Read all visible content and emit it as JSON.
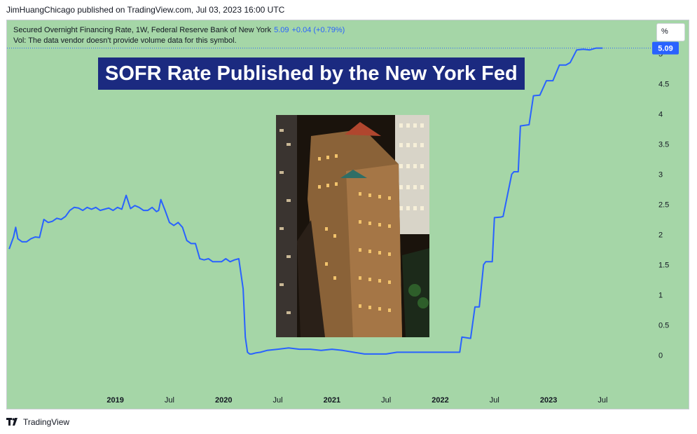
{
  "header": {
    "publish_text": "JimHuangChicago published on TradingView.com, Jul 03, 2023 16:00 UTC"
  },
  "legend": {
    "symbol": "Secured Overnight Financing Rate, 1W, Federal Reserve Bank of New York",
    "last_value": "5.09",
    "change": "+0.04 (+0.79%)",
    "volume_note": "Vol: The data vendor doesn't provide volume data for this symbol."
  },
  "scale_button": {
    "label": "%"
  },
  "banner": {
    "title": "SOFR Rate Published by the New York Fed"
  },
  "photo": {
    "subject": "federal-reserve-bank-of-new-york-building"
  },
  "footer": {
    "brand": "TradingView"
  },
  "colors": {
    "background": "#a5d6a7",
    "line": "#2962ff",
    "banner": "#1b2a80",
    "price_label": "#2962ff"
  },
  "chart_data": {
    "type": "line",
    "series": [
      {
        "x": [
          2018.02,
          2018.06,
          2018.08,
          2018.1,
          2018.14,
          2018.18,
          2018.22,
          2018.26,
          2018.3,
          2018.34,
          2018.38,
          2018.42,
          2018.46,
          2018.5,
          2018.54,
          2018.58,
          2018.62,
          2018.66,
          2018.7,
          2018.74,
          2018.78,
          2018.82,
          2018.86,
          2018.9,
          2018.94,
          2018.98,
          2019.02,
          2019.06,
          2019.1,
          2019.14,
          2019.18,
          2019.22,
          2019.26,
          2019.3,
          2019.34,
          2019.38,
          2019.4,
          2019.42,
          2019.46,
          2019.5,
          2019.54,
          2019.58,
          2019.62,
          2019.66,
          2019.7,
          2019.74,
          2019.78,
          2019.82,
          2019.86,
          2019.9,
          2019.94,
          2019.98,
          2020.02,
          2020.06,
          2020.1,
          2020.14,
          2020.18,
          2020.2,
          2020.22,
          2020.24,
          2020.26,
          2020.3,
          2020.34,
          2020.4,
          2020.5,
          2020.6,
          2020.7,
          2020.8,
          2020.9,
          2021.0,
          2021.1,
          2021.2,
          2021.3,
          2021.4,
          2021.45,
          2021.5,
          2021.6,
          2021.8,
          2022.0,
          2022.1,
          2022.18,
          2022.2,
          2022.28,
          2022.32,
          2022.36,
          2022.4,
          2022.42,
          2022.48,
          2022.5,
          2022.56,
          2022.58,
          2022.66,
          2022.68,
          2022.72,
          2022.74,
          2022.82,
          2022.86,
          2022.92,
          2022.98,
          2023.04,
          2023.1,
          2023.16,
          2023.2,
          2023.26,
          2023.32,
          2023.38,
          2023.44,
          2023.5
        ],
        "y": [
          1.76,
          1.96,
          2.12,
          1.93,
          1.88,
          1.88,
          1.93,
          1.96,
          1.95,
          2.25,
          2.2,
          2.22,
          2.27,
          2.25,
          2.3,
          2.4,
          2.45,
          2.44,
          2.4,
          2.45,
          2.42,
          2.45,
          2.4,
          2.42,
          2.44,
          2.4,
          2.45,
          2.42,
          2.65,
          2.43,
          2.48,
          2.45,
          2.4,
          2.4,
          2.45,
          2.38,
          2.4,
          2.58,
          2.4,
          2.2,
          2.15,
          2.2,
          2.12,
          1.9,
          1.85,
          1.85,
          1.6,
          1.58,
          1.6,
          1.55,
          1.55,
          1.55,
          1.6,
          1.55,
          1.58,
          1.6,
          1.1,
          0.3,
          0.05,
          0.02,
          0.02,
          0.04,
          0.05,
          0.08,
          0.1,
          0.12,
          0.1,
          0.1,
          0.08,
          0.1,
          0.08,
          0.05,
          0.02,
          0.02,
          0.02,
          0.02,
          0.05,
          0.05,
          0.05,
          0.05,
          0.05,
          0.3,
          0.28,
          0.8,
          0.8,
          1.5,
          1.55,
          1.55,
          2.28,
          2.29,
          2.3,
          3.0,
          3.04,
          3.04,
          3.8,
          3.82,
          4.3,
          4.31,
          4.55,
          4.55,
          4.81,
          4.81,
          4.85,
          5.06,
          5.07,
          5.06,
          5.09,
          5.09
        ]
      }
    ],
    "x_ticks": [
      {
        "value": 2019.0,
        "label": "2019",
        "bold": true
      },
      {
        "value": 2019.5,
        "label": "Jul",
        "bold": false
      },
      {
        "value": 2020.0,
        "label": "2020",
        "bold": true
      },
      {
        "value": 2020.5,
        "label": "Jul",
        "bold": false
      },
      {
        "value": 2021.0,
        "label": "2021",
        "bold": true
      },
      {
        "value": 2021.5,
        "label": "Jul",
        "bold": false
      },
      {
        "value": 2022.0,
        "label": "2022",
        "bold": true
      },
      {
        "value": 2022.5,
        "label": "Jul",
        "bold": false
      },
      {
        "value": 2023.0,
        "label": "2023",
        "bold": true
      },
      {
        "value": 2023.5,
        "label": "Jul",
        "bold": false
      }
    ],
    "y_ticks": [
      "0",
      "0.5",
      "1",
      "1.5",
      "2",
      "2.5",
      "3",
      "3.5",
      "4",
      "4.5",
      "5"
    ],
    "xlim": [
      2018.0,
      2023.95
    ],
    "ylim": [
      -0.55,
      5.55
    ],
    "last_price_label": "5.09",
    "grid": false
  }
}
